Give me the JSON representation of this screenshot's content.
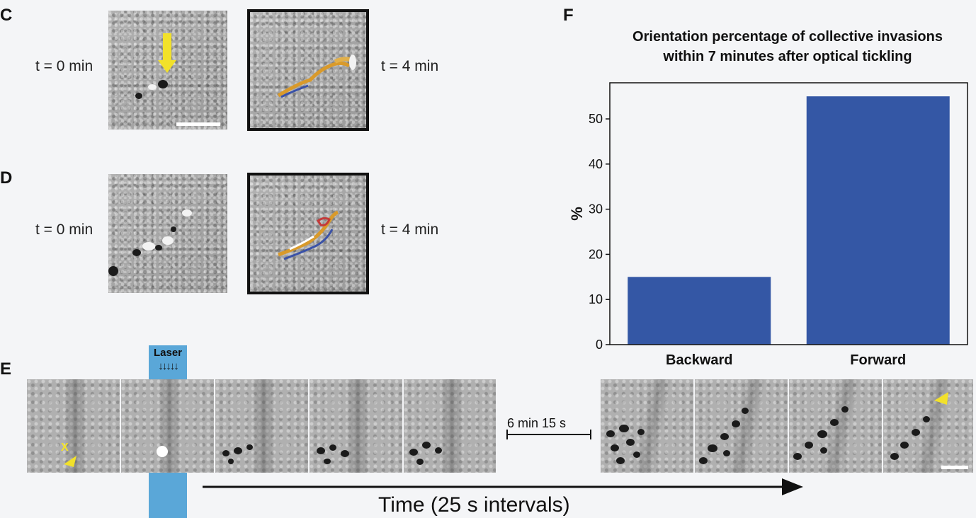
{
  "panels": {
    "c": {
      "letter": "C",
      "t0": "t = 0 min",
      "t4": "t = 4 min"
    },
    "d": {
      "letter": "D",
      "t0": "t = 0 min",
      "t4": "t = 4 min"
    },
    "e": {
      "letter": "E",
      "laser_label": "Laser",
      "laser_arrows": "↓↓↓↓↓",
      "marker": "X",
      "gap_label": "6 min 15 s",
      "time_label": "Time (25 s intervals)",
      "laser_color": "#5aa7d8"
    },
    "f": {
      "letter": "F"
    }
  },
  "chart_data": {
    "type": "bar",
    "title_line1": "Orientation percentage of collective invasions",
    "title_line2": "within  7 minutes after optical tickling",
    "categories": [
      "Backward",
      "Forward"
    ],
    "values": [
      15,
      55
    ],
    "ylabel": "%",
    "ylim": [
      0,
      58
    ],
    "yticks": [
      0,
      10,
      20,
      30,
      40,
      50
    ],
    "bar_color": "#3457a5",
    "grid": false
  }
}
